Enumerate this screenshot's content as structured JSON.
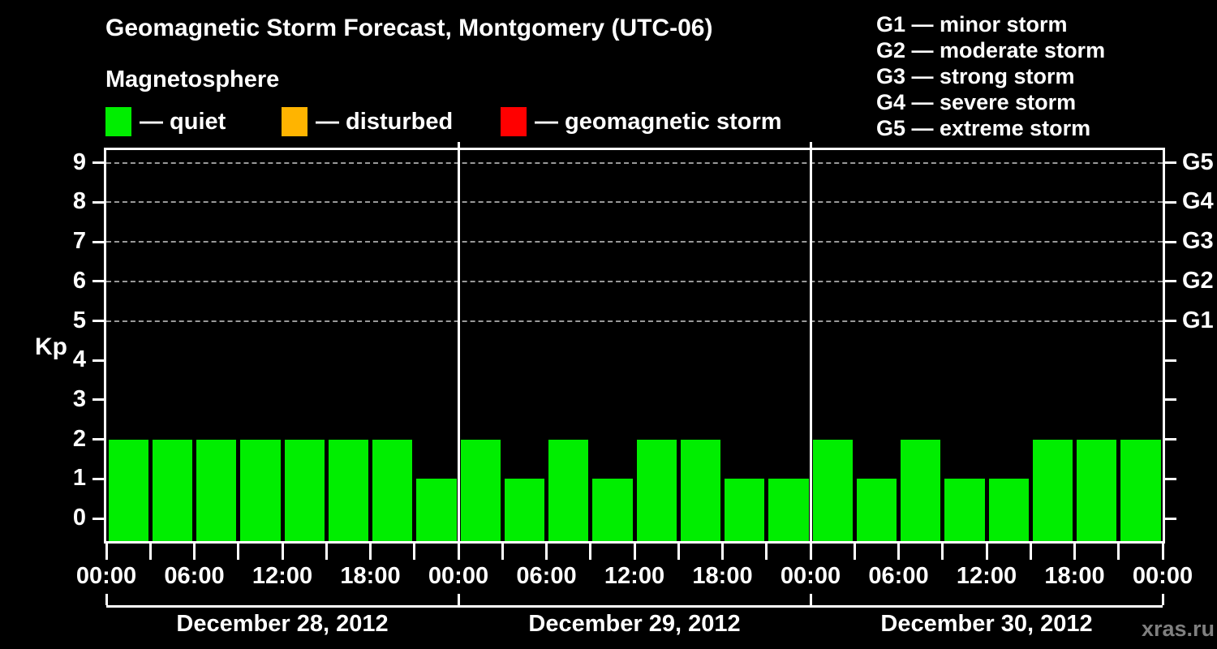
{
  "title": "Geomagnetic Storm Forecast, Montgomery (UTC-06)",
  "subtitle": "Magnetosphere",
  "legend": {
    "items": [
      {
        "name": "quiet",
        "label": "— quiet",
        "color": "#00ee00"
      },
      {
        "name": "disturbed",
        "label": "— disturbed",
        "color": "#ffb400"
      },
      {
        "name": "geomagnetic-storm",
        "label": "— geomagnetic storm",
        "color": "#ff0000"
      }
    ]
  },
  "g_legend": {
    "items": [
      "G1 — minor storm",
      "G2 — moderate storm",
      "G3 — strong storm",
      "G4 — severe storm",
      "G5 — extreme storm"
    ]
  },
  "watermark": "xras.ru",
  "chart_data": {
    "type": "bar",
    "title": "Geomagnetic Storm Forecast, Montgomery (UTC-06)",
    "ylabel": "Kp",
    "bar_color": "#00ee00",
    "hours_per_bar": 3,
    "y_ticks": [
      0,
      1,
      2,
      3,
      4,
      5,
      6,
      7,
      8,
      9
    ],
    "ylim": [
      -0.6,
      9.3
    ],
    "grid": "horizontal dashed lines at Kp 5-9 (storm levels G1-G5)",
    "gridlines_at": [
      5,
      6,
      7,
      8,
      9
    ],
    "right_axis": [
      {
        "kp": 5,
        "label": "G1"
      },
      {
        "kp": 6,
        "label": "G2"
      },
      {
        "kp": 7,
        "label": "G3"
      },
      {
        "kp": 8,
        "label": "G4"
      },
      {
        "kp": 9,
        "label": "G5"
      }
    ],
    "x_tick_labels": [
      "00:00",
      "06:00",
      "12:00",
      "18:00",
      "00:00",
      "06:00",
      "12:00",
      "18:00",
      "00:00",
      "06:00",
      "12:00",
      "18:00",
      "00:00"
    ],
    "days": [
      {
        "date": "December 28, 2012",
        "values": [
          2,
          2,
          2,
          2,
          2,
          2,
          2,
          1
        ]
      },
      {
        "date": "December 29, 2012",
        "values": [
          2,
          1,
          2,
          1,
          2,
          2,
          1,
          1
        ]
      },
      {
        "date": "December 30, 2012",
        "values": [
          2,
          1,
          2,
          1,
          1,
          2,
          2,
          2
        ]
      }
    ]
  }
}
